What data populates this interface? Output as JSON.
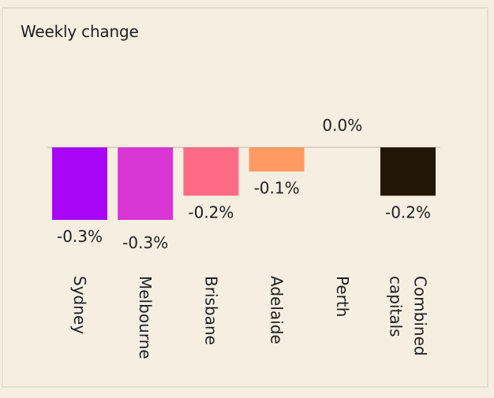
{
  "chart_data": {
    "type": "bar",
    "title": "Weekly change",
    "categories": [
      [
        "Sydney"
      ],
      [
        "Melbourne"
      ],
      [
        "Brisbane"
      ],
      [
        "Adelaide"
      ],
      [
        "Perth"
      ],
      [
        "Combined",
        "capitals"
      ]
    ],
    "values": [
      -0.3,
      -0.3,
      -0.2,
      -0.1,
      0.0,
      -0.2
    ],
    "value_labels": [
      "-0.3%",
      "-0.3%",
      "-0.2%",
      "-0.1%",
      "0.0%",
      "-0.2%"
    ],
    "colors": [
      "#a807f7",
      "#d934d4",
      "#ff6b85",
      "#ff9a63",
      "#ffd07a",
      "#211708"
    ],
    "ylim": [
      -0.3,
      0.0
    ],
    "xlabel": "",
    "ylabel": "",
    "grid": false
  }
}
